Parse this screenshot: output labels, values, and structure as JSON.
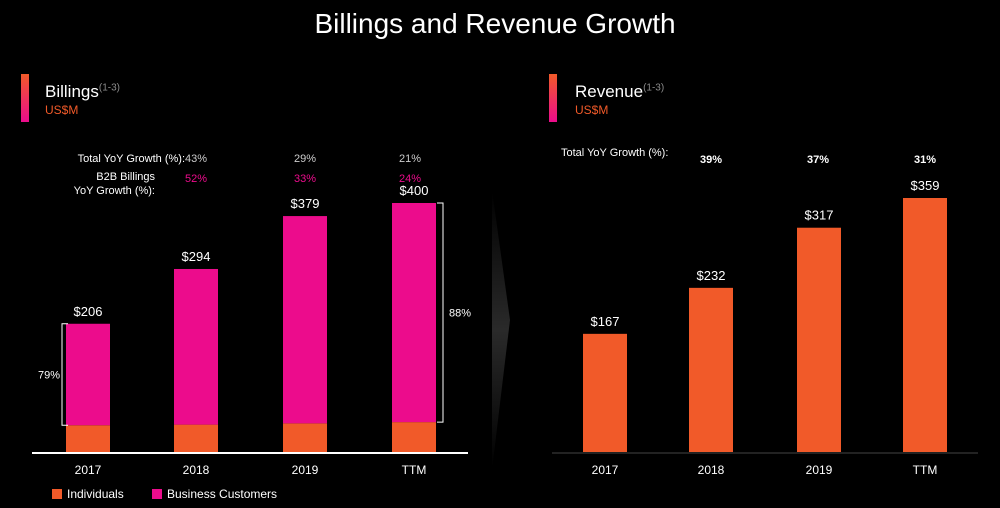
{
  "title": "Billings and Revenue Growth",
  "colors": {
    "individuals": "#f15a29",
    "business": "#ec0c8c",
    "revenue": "#f15a29",
    "pos_pct": "#cccccc",
    "b2b_pct": "#ec0c8c"
  },
  "billings": {
    "heading": "Billings",
    "heading_note": "(1-3)",
    "unit": "US$M",
    "growth_label": "Total YoY Growth (%):",
    "b2b_label_1": "B2B Billings",
    "b2b_label_2": "YoY Growth (%):",
    "growth": [
      "43%",
      "29%",
      "21%"
    ],
    "b2b_growth": [
      "52%",
      "33%",
      "24%"
    ],
    "bracket_left": "79%",
    "bracket_right": "88%"
  },
  "revenue": {
    "heading": "Revenue",
    "heading_note": "(1-3)",
    "unit": "US$M",
    "growth_label": "Total YoY Growth (%):",
    "growth": [
      "39%",
      "37%",
      "31%"
    ]
  },
  "legend": {
    "individuals": "Individuals",
    "business": "Business Customers"
  },
  "chart_data": [
    {
      "type": "bar",
      "stacked": true,
      "title": "Billings",
      "categories": [
        "2017",
        "2018",
        "2019",
        "TTM"
      ],
      "series": [
        {
          "name": "Individuals",
          "values": [
            43,
            44,
            46,
            48
          ]
        },
        {
          "name": "Business Customers",
          "values": [
            163,
            250,
            333,
            352
          ]
        }
      ],
      "totals": [
        206,
        294,
        379,
        400
      ],
      "total_labels": [
        "$206",
        "$294",
        "$379",
        "$400"
      ],
      "ylim": [
        0,
        420
      ]
    },
    {
      "type": "bar",
      "title": "Revenue",
      "categories": [
        "2017",
        "2018",
        "2019",
        "TTM"
      ],
      "values": [
        167,
        232,
        317,
        359
      ],
      "value_labels": [
        "$167",
        "$232",
        "$317",
        "$359"
      ],
      "ylim": [
        0,
        380
      ]
    }
  ]
}
